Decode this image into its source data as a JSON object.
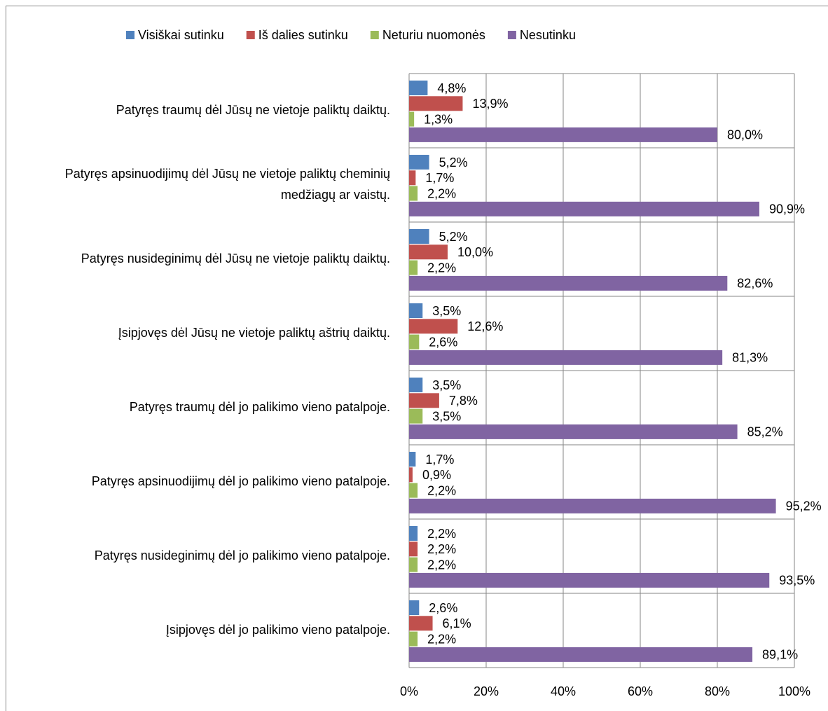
{
  "chart_data": {
    "type": "bar",
    "orientation": "horizontal",
    "categories": [
      "Patyręs traumų dėl Jūsų ne vietoje paliktų daiktų.",
      "Patyręs apsinuodijimų dėl Jūsų ne vietoje paliktų cheminių medžiagų ar vaistų.",
      "Patyręs nusideginimų dėl Jūsų ne vietoje paliktų daiktų.",
      "Įsipjovęs dėl Jūsų ne vietoje paliktų aštrių daiktų.",
      "Patyręs traumų dėl jo palikimo vieno patalpoje.",
      "Patyręs apsinuodijimų dėl jo palikimo vieno patalpoje.",
      "Patyręs nusideginimų dėl jo palikimo vieno patalpoje.",
      "Įsipjovęs dėl jo palikimo vieno patalpoje."
    ],
    "series": [
      {
        "name": "Visiškai sutinku",
        "color": "#4f81bd",
        "values": [
          4.8,
          5.2,
          5.2,
          3.5,
          3.5,
          1.7,
          2.2,
          2.6
        ],
        "value_labels": [
          "4,8%",
          "5,2%",
          "5,2%",
          "3,5%",
          "3,5%",
          "1,7%",
          "2,2%",
          "2,6%"
        ]
      },
      {
        "name": "Iš dalies sutinku",
        "color": "#c0504d",
        "values": [
          13.9,
          1.7,
          10.0,
          12.6,
          7.8,
          0.9,
          2.2,
          6.1
        ],
        "value_labels": [
          "13,9%",
          "1,7%",
          "10,0%",
          "12,6%",
          "7,8%",
          "0,9%",
          "2,2%",
          "6,1%"
        ]
      },
      {
        "name": "Neturiu nuomonės",
        "color": "#9bbb59",
        "values": [
          1.3,
          2.2,
          2.2,
          2.6,
          3.5,
          2.2,
          2.2,
          2.2
        ],
        "value_labels": [
          "1,3%",
          "2,2%",
          "2,2%",
          "2,6%",
          "3,5%",
          "2,2%",
          "2,2%",
          "2,2%"
        ]
      },
      {
        "name": "Nesutinku",
        "color": "#8064a2",
        "values": [
          80.0,
          90.9,
          82.6,
          81.3,
          85.2,
          95.2,
          93.5,
          89.1
        ],
        "value_labels": [
          "80,0%",
          "90,9%",
          "82,6%",
          "81,3%",
          "85,2%",
          "95,2%",
          "93,5%",
          "89,1%"
        ]
      }
    ],
    "xlim": [
      0,
      100
    ],
    "xticks": [
      {
        "value": 0,
        "label": "0%"
      },
      {
        "value": 20,
        "label": "20%"
      },
      {
        "value": 40,
        "label": "40%"
      },
      {
        "value": 60,
        "label": "60%"
      },
      {
        "value": 80,
        "label": "80%"
      },
      {
        "value": 100,
        "label": "100%"
      }
    ],
    "grid": true,
    "legend": "top"
  }
}
